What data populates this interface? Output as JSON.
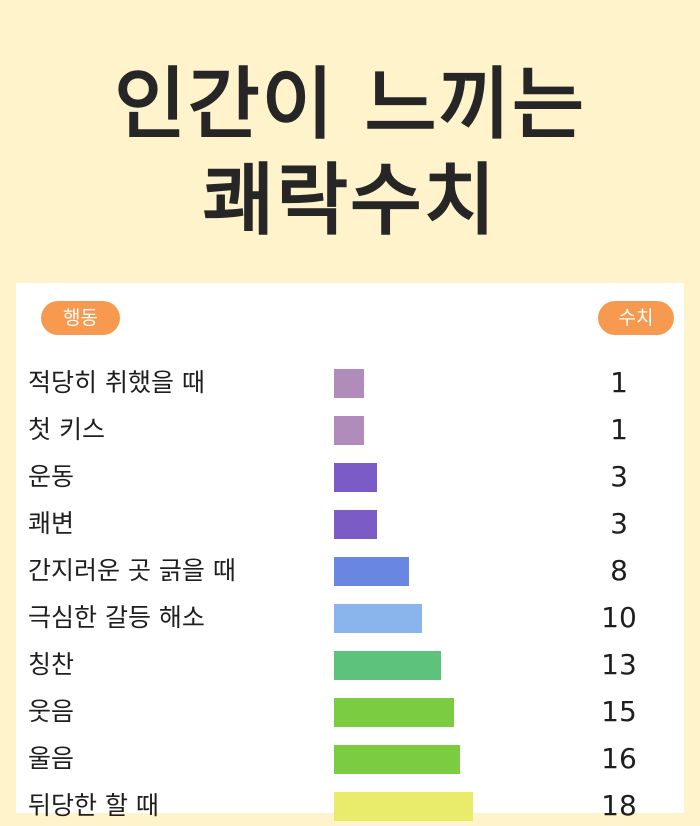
{
  "header": {
    "title_line1": "인간이 느끼는",
    "title_line2": "쾌락수치"
  },
  "table": {
    "col_action": "행동",
    "col_value": "수치"
  },
  "chart_data": {
    "type": "bar",
    "orientation": "horizontal",
    "xlim": [
      0,
      19
    ],
    "categories": [
      "적당히 취했을 때",
      "첫 키스",
      "운동",
      "쾌변",
      "간지러운 곳 긁을 때",
      "극심한 갈등 해소",
      "칭찬",
      "웃음",
      "울음",
      "뒤당한 할 때"
    ],
    "values": [
      1,
      1,
      3,
      3,
      8,
      10,
      13,
      15,
      16,
      18
    ],
    "value_labels": [
      "1",
      "1",
      "3",
      "3",
      "8",
      "10",
      "13",
      "15",
      "16",
      "18"
    ],
    "bar_colors": [
      "#b08cba",
      "#b08cba",
      "#7b5cc6",
      "#7b5cc6",
      "#6a86e3",
      "#8ab4ec",
      "#5cc27c",
      "#7ccc42",
      "#7ccc42",
      "#e9ec6a"
    ]
  }
}
